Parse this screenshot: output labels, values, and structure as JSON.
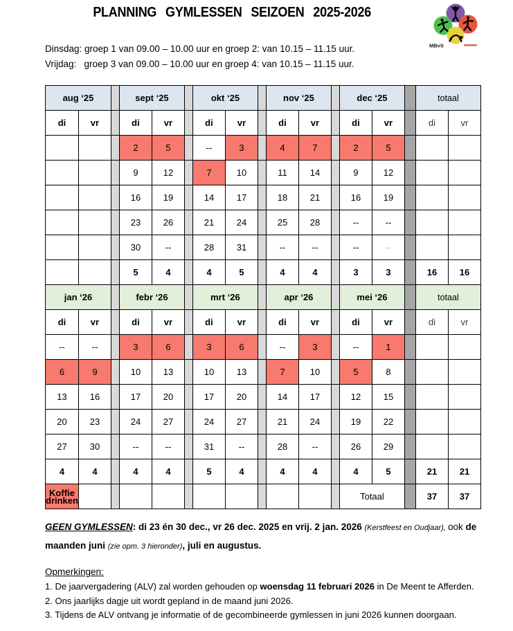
{
  "title": "PLANNING GYMLESSEN SEIZOEN 2025-2026",
  "logo": {
    "name": "MBvS"
  },
  "schedule_lines": [
    "Dinsdag: groep 1 van 09.00 – 10.00 uur en groep 2: van 10.15 – 11.15 uur.",
    "Vrijdag:   groep 3 van 09.00 – 10.00 uur en groep 4: van 10.15 – 11.15 uur."
  ],
  "colors": {
    "header_blue": "#dce6f1",
    "header_green": "#e2efda",
    "highlight_red": "#f8796e",
    "sep_light": "#d9d9d9",
    "sep_dark": "#a6a6a6",
    "orange_text": "#e3a878"
  },
  "calendar": {
    "day_headers": [
      "di",
      "vr"
    ],
    "total_header": "totaal",
    "halves": [
      {
        "theme": "blue",
        "months": [
          "aug ‘25",
          "sept ‘25",
          "okt ‘25",
          "nov ‘25",
          "dec ‘25"
        ],
        "date_rows": [
          [
            "",
            "",
            {
              "v": "2",
              "bg": "red"
            },
            {
              "v": "5",
              "bg": "red"
            },
            "--",
            {
              "v": "3",
              "bg": "red"
            },
            {
              "v": "4",
              "bg": "red"
            },
            {
              "v": "7",
              "bg": "red"
            },
            {
              "v": "2",
              "bg": "red"
            },
            {
              "v": "5",
              "bg": "red"
            }
          ],
          [
            "",
            "",
            "9",
            "12",
            {
              "v": "7",
              "bg": "red"
            },
            "10",
            "11",
            "14",
            "9",
            "12"
          ],
          [
            "",
            "",
            "16",
            "19",
            "14",
            "17",
            "18",
            "21",
            "16",
            "19"
          ],
          [
            "",
            "",
            "23",
            "26",
            "21",
            "24",
            "25",
            "28",
            "--",
            "--"
          ],
          [
            "",
            "",
            "30",
            "--",
            "28",
            "31",
            "--",
            "--",
            "--",
            {
              "v": "--",
              "fg": "orange"
            }
          ]
        ],
        "counts": [
          "",
          "",
          "5",
          "4",
          "4",
          "5",
          "4",
          "4",
          "3",
          "3"
        ],
        "totals": [
          "16",
          "16"
        ]
      },
      {
        "theme": "green",
        "months": [
          "jan ‘26",
          "febr ‘26",
          "mrt ‘26",
          "apr ‘26",
          "mei ‘26"
        ],
        "date_rows": [
          [
            "--",
            "--",
            {
              "v": "3",
              "bg": "red"
            },
            {
              "v": "6",
              "bg": "red"
            },
            {
              "v": "3",
              "bg": "red"
            },
            {
              "v": "6",
              "bg": "red"
            },
            "--",
            {
              "v": "3",
              "bg": "red"
            },
            "--",
            {
              "v": "1",
              "bg": "red"
            }
          ],
          [
            {
              "v": "6",
              "bg": "red"
            },
            {
              "v": "9",
              "bg": "red"
            },
            "10",
            "13",
            "10",
            "13",
            {
              "v": "7",
              "bg": "red"
            },
            "10",
            {
              "v": "5",
              "bg": "red"
            },
            "8"
          ],
          [
            "13",
            "16",
            "17",
            "20",
            "17",
            "20",
            "14",
            "17",
            "12",
            "15"
          ],
          [
            "20",
            "23",
            "24",
            "27",
            "24",
            "27",
            "21",
            "24",
            "19",
            "22"
          ],
          [
            "27",
            "30",
            "--",
            "--",
            "31",
            "--",
            "28",
            "--",
            "26",
            "29"
          ]
        ],
        "counts": [
          "4",
          "4",
          "4",
          "4",
          "5",
          "4",
          "4",
          "4",
          "4",
          "5"
        ],
        "totals": [
          "21",
          "21"
        ]
      }
    ],
    "footer_row": {
      "coffee": "Koffie drinken",
      "total_label": "Totaal",
      "totals": [
        "37",
        "37"
      ]
    }
  },
  "note": {
    "segments": [
      {
        "t": "GEEN GYMLESSEN",
        "s": "b i u"
      },
      {
        "t": ": ",
        "s": "b"
      },
      {
        "t": "di 23 én 30 dec., vr 26 dec. 2025 en vrij. 2 jan. 2026 ",
        "s": "b"
      },
      {
        "t": "(Kerstfeest en Oudjaar), ",
        "s": "i sm"
      },
      {
        "t": "ook ",
        "s": ""
      },
      {
        "t": "de maanden juni ",
        "s": "b"
      },
      {
        "t": "(zie opm. 3 hieronder)",
        "s": "i sm"
      },
      {
        "t": ", juli en augustus.",
        "s": "b"
      }
    ]
  },
  "remarks": {
    "heading": "Opmerkingen:",
    "items": [
      [
        {
          "t": "1. De jaarvergadering (ALV) zal worden gehouden op ",
          "s": ""
        },
        {
          "t": "woensdag 11 februari 2026",
          "s": "b"
        },
        {
          "t": " in De Meent te Afferden.",
          "s": ""
        }
      ],
      [
        {
          "t": "2. Ons jaarlijks dagje uit wordt gepland in de maand juni 2026.",
          "s": ""
        }
      ],
      [
        {
          "t": "3. Tijdens de ALV ontvang je informatie of de gecombineerde gymlessen in juni 2026 kunnen doorgaan.",
          "s": ""
        }
      ]
    ]
  }
}
